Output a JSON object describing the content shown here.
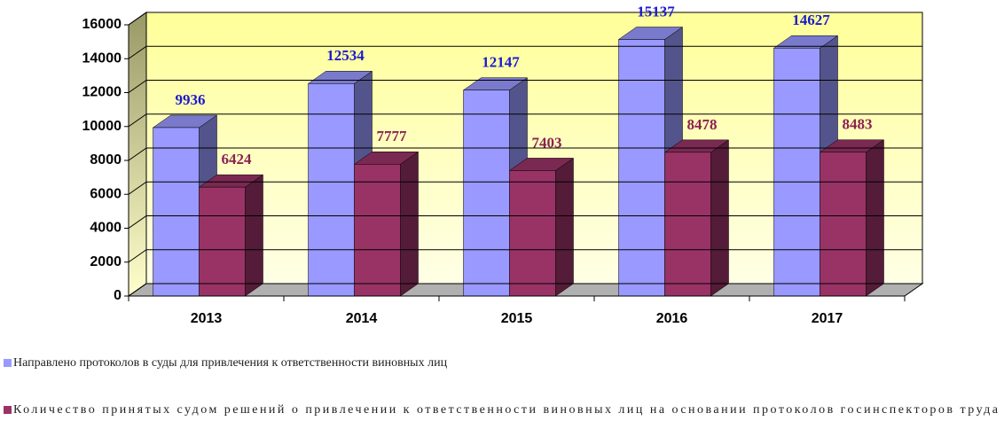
{
  "chart_data": {
    "type": "bar3d",
    "categories": [
      "2013",
      "2014",
      "2015",
      "2016",
      "2017"
    ],
    "series": [
      {
        "name": "Направлено протоколов  в суды для привлечения  к ответственности виновных  лиц",
        "color": "#9999ff",
        "values": [
          9936,
          12534,
          12147,
          15137,
          14627
        ]
      },
      {
        "name": "Количество принятых  судом решений  о привлечении  к ответственности виновных  лиц на основании  протоколов  госинспекторов  труда",
        "color": "#993366",
        "values": [
          6424,
          7777,
          7403,
          8478,
          8483
        ]
      }
    ],
    "value_label_colors": [
      "#1a1acc",
      "#8b2252"
    ],
    "ylim": [
      0,
      16000
    ],
    "yticks": [
      0,
      2000,
      4000,
      6000,
      8000,
      10000,
      12000,
      14000,
      16000
    ],
    "grid": true
  }
}
